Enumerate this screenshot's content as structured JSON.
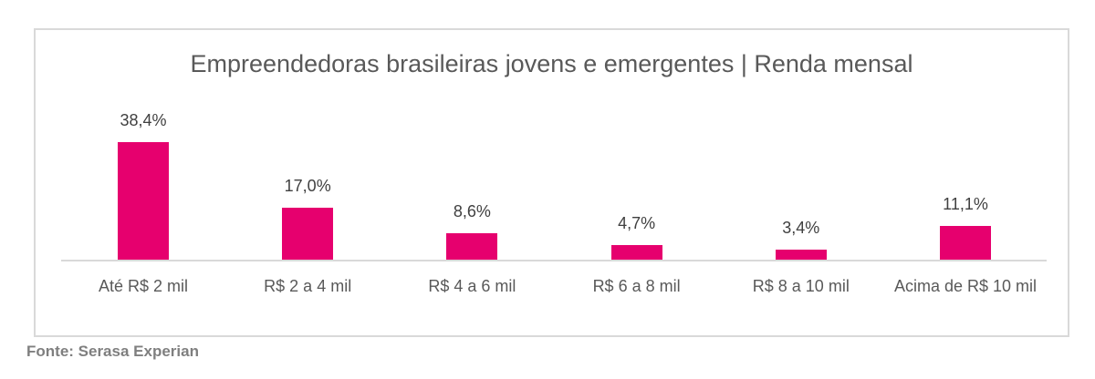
{
  "chart_data": {
    "type": "bar",
    "title": "Empreendedoras brasileiras jovens e emergentes | Renda mensal",
    "categories": [
      "Até R$ 2 mil",
      "R$ 2 a 4 mil",
      "R$ 4 a 6 mil",
      "R$ 6 a 8 mil",
      "R$ 8 a 10 mil",
      "Acima de R$ 10 mil"
    ],
    "values": [
      38.4,
      17.0,
      8.6,
      4.7,
      3.4,
      11.1
    ],
    "value_labels": [
      "38,4%",
      "17,0%",
      "8,6%",
      "4,7%",
      "3,4%",
      "11,1%"
    ],
    "xlabel": "",
    "ylabel": "",
    "ylim": [
      0,
      40
    ],
    "grid": false,
    "legend": "none",
    "bar_color": "#e6006e"
  },
  "chart": {
    "title": "Empreendedoras brasileiras jovens e emergentes | Renda mensal",
    "bars": [
      {
        "category": "Até R$ 2 mil",
        "label": "38,4%"
      },
      {
        "category": "R$ 2 a 4 mil",
        "label": "17,0%"
      },
      {
        "category": "R$ 4 a 6 mil",
        "label": "8,6%"
      },
      {
        "category": "R$ 6 a 8 mil",
        "label": "4,7%"
      },
      {
        "category": "R$ 8 a 10 mil",
        "label": "3,4%"
      },
      {
        "category": "Acima de R$ 10 mil",
        "label": "11,1%"
      }
    ]
  },
  "source": "Fonte: Serasa Experian"
}
